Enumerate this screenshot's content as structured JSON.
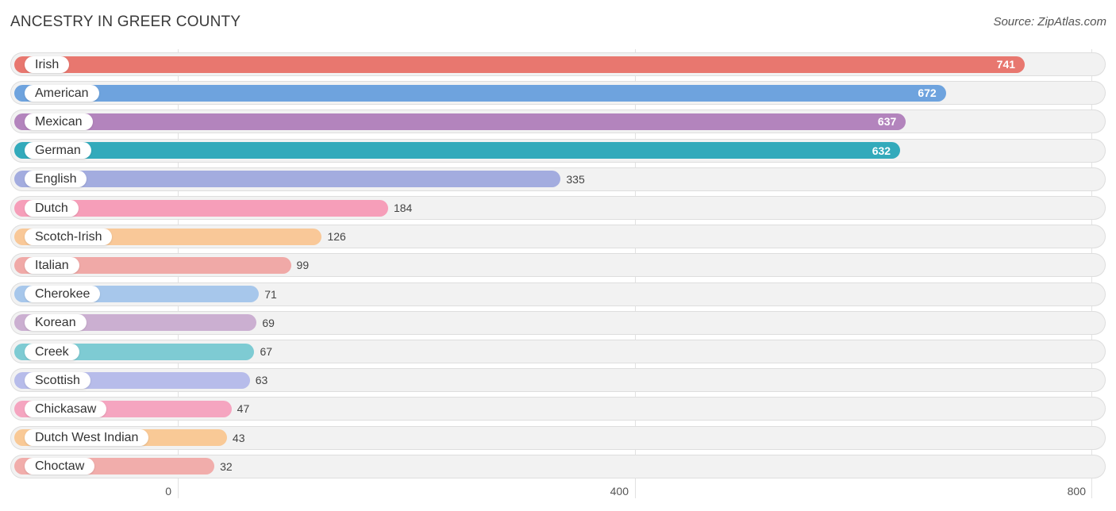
{
  "header": {
    "title": "ANCESTRY IN GREER COUNTY",
    "source": "Source: ZipAtlas.com"
  },
  "chart_data": {
    "type": "bar",
    "orientation": "horizontal",
    "title": "ANCESTRY IN GREER COUNTY",
    "xlim": [
      0,
      800
    ],
    "ticks": [
      0,
      400,
      800
    ],
    "grid": true,
    "categories": [
      "Irish",
      "American",
      "Mexican",
      "German",
      "English",
      "Dutch",
      "Scotch-Irish",
      "Italian",
      "Cherokee",
      "Korean",
      "Creek",
      "Scottish",
      "Chickasaw",
      "Dutch West Indian",
      "Choctaw"
    ],
    "values": [
      741,
      672,
      637,
      632,
      335,
      184,
      126,
      99,
      71,
      69,
      67,
      63,
      47,
      43,
      32
    ],
    "colors": [
      "#e8776f",
      "#6ea3de",
      "#b384bd",
      "#33aabb",
      "#a3acdf",
      "#f69eb9",
      "#f9c898",
      "#f0a9a7",
      "#a7c7eb",
      "#cbafd1",
      "#7ecbd3",
      "#b7bcea",
      "#f5a5c0",
      "#f9c996",
      "#f1adab"
    ]
  }
}
